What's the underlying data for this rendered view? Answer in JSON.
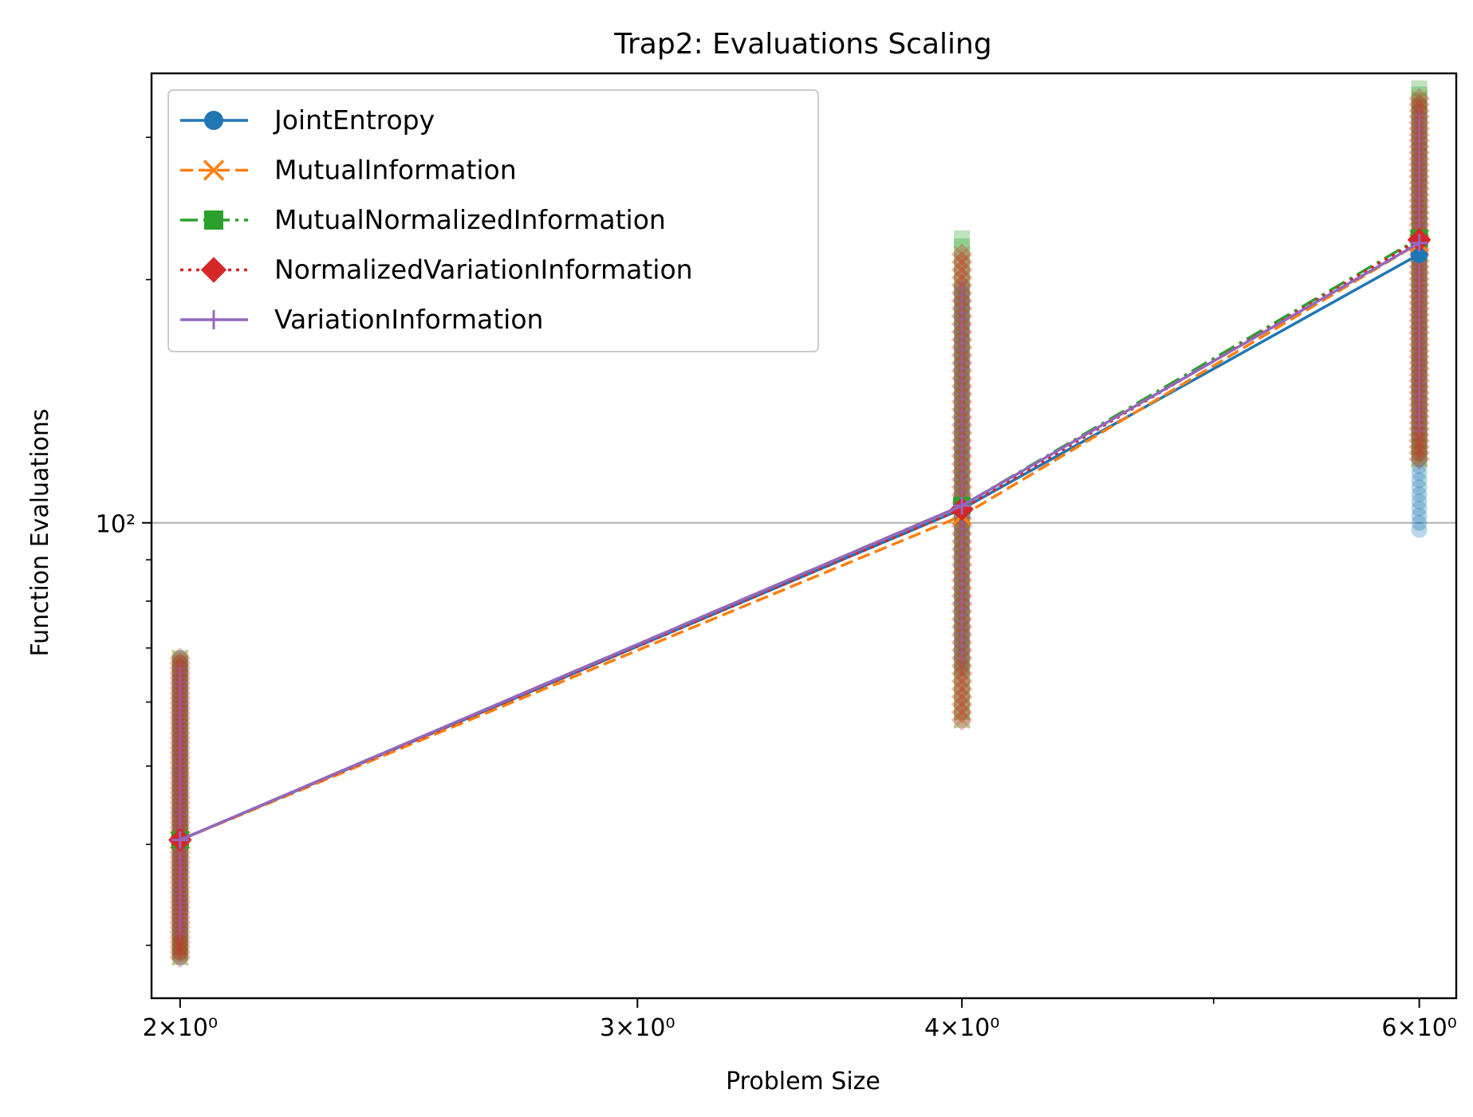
{
  "chart_data": {
    "type": "line",
    "title": "Trap2: Evaluations Scaling",
    "xlabel": "Problem Size",
    "ylabel": "Function Evaluations",
    "x_scale": "log",
    "y_scale": "log",
    "xlim": [
      1.95,
      6.2
    ],
    "ylim": [
      25.8,
      360
    ],
    "x": [
      2,
      4,
      6
    ],
    "x_ticks": [
      {
        "value": 2,
        "label": "2×10⁰"
      },
      {
        "value": 3,
        "label": "3×10⁰"
      },
      {
        "value": 4,
        "label": "4×10⁰"
      },
      {
        "value": 6,
        "label": "6×10⁰"
      }
    ],
    "x_minor_ticks": [
      5
    ],
    "y_ticks": [
      {
        "value": 100,
        "label": "10²"
      }
    ],
    "y_minor_ticks": [
      30,
      40,
      50,
      60,
      70,
      80,
      90,
      200,
      300
    ],
    "grid": "horizontal major",
    "legend_position": "upper-left",
    "series": [
      {
        "name": "JointEntropy",
        "values": [
          40.5,
          104,
          215
        ],
        "color": "#1f77b4",
        "linestyle": "solid",
        "marker": "circle",
        "scatter_ranges": [
          [
            29,
            68
          ],
          [
            66,
            195
          ],
          [
            98,
            330
          ]
        ]
      },
      {
        "name": "MutualInformation",
        "values": [
          40.5,
          102,
          222
        ],
        "color": "#ff7f0e",
        "linestyle": "dashed",
        "marker": "x",
        "scatter_ranges": [
          [
            29,
            68
          ],
          [
            57,
            215
          ],
          [
            120,
            335
          ]
        ]
      },
      {
        "name": "MutualNormalizedInformation",
        "values": [
          40.5,
          105,
          225
        ],
        "color": "#2ca02c",
        "linestyle": "dashdot",
        "marker": "square",
        "scatter_ranges": [
          [
            29,
            68
          ],
          [
            57,
            225
          ],
          [
            120,
            345
          ]
        ]
      },
      {
        "name": "NormalizedVariationInformation",
        "values": [
          40.5,
          104,
          224
        ],
        "color": "#d62728",
        "linestyle": "dotted",
        "marker": "diamond",
        "scatter_ranges": [
          [
            29,
            68
          ],
          [
            57,
            215
          ],
          [
            120,
            335
          ]
        ]
      },
      {
        "name": "VariationInformation",
        "values": [
          40.5,
          105,
          222
        ],
        "color": "#9467bd",
        "linestyle": "solid",
        "marker": "plus",
        "scatter_ranges": [
          [
            31,
            66
          ],
          [
            68,
            195
          ],
          [
            130,
            320
          ]
        ]
      }
    ]
  }
}
